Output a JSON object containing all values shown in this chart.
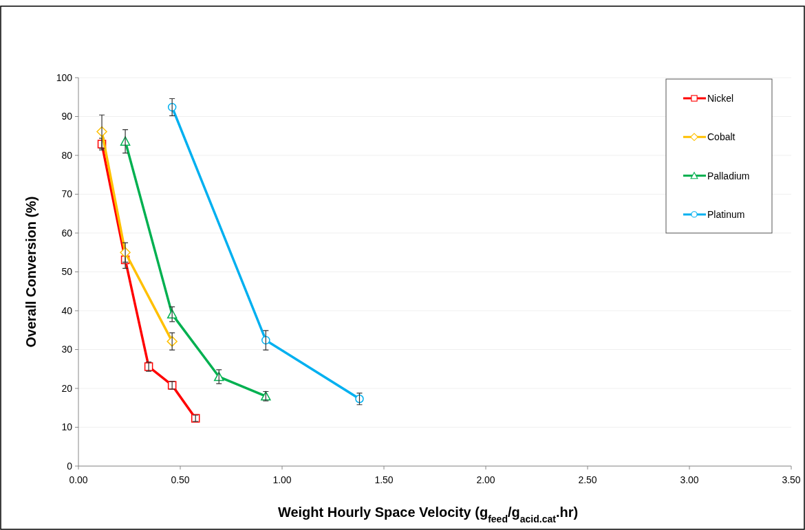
{
  "chart_data": {
    "type": "line",
    "xlabel": "Weight Hourly Space Velocity (g$_{feed}$/g$_{acid.cat}$.hr)",
    "ylabel": "Overall Conversion (%)",
    "xlim": [
      0,
      3.5
    ],
    "xticks": [
      {
        "value": 0,
        "label": "0.00"
      },
      {
        "value": 0.5,
        "label": "0.50"
      },
      {
        "value": 1,
        "label": "1.00"
      },
      {
        "value": 1.5,
        "label": "1.50"
      },
      {
        "value": 2,
        "label": "2.00"
      },
      {
        "value": 2.5,
        "label": "2.50"
      },
      {
        "value": 3,
        "label": "3.00"
      },
      {
        "value": 3.5,
        "label": "3.50"
      }
    ],
    "ylim": [
      0,
      100
    ],
    "yticks": [
      0,
      10,
      20,
      30,
      40,
      50,
      60,
      70,
      80,
      90,
      100
    ],
    "grid": "y",
    "legend": "top right",
    "series": [
      {
        "name": "Nickel",
        "color": "#ff0000",
        "marker": "square",
        "x": [
          0.115,
          0.23,
          0.345,
          0.46,
          0.575
        ],
        "values": [
          82.9,
          53.1,
          25.6,
          20.8,
          12.3
        ],
        "errors": [
          1.5,
          2.2,
          1.2,
          1.0,
          0.8
        ]
      },
      {
        "name": "Cobalt",
        "color": "#ffc000",
        "marker": "diamond",
        "x": [
          0.115,
          0.23,
          0.46
        ],
        "values": [
          86.1,
          55.0,
          32.1
        ],
        "errors": [
          4.3,
          2.5,
          2.2
        ]
      },
      {
        "name": "Palladium",
        "color": "#00b050",
        "marker": "triangle",
        "x": [
          0.23,
          0.46,
          0.69,
          0.92
        ],
        "values": [
          83.6,
          39.1,
          23.0,
          18.0
        ],
        "errors": [
          3.0,
          1.9,
          1.8,
          1.2
        ]
      },
      {
        "name": "Platinum",
        "color": "#00b0f0",
        "marker": "circle",
        "x": [
          0.46,
          0.92,
          1.38
        ],
        "values": [
          92.4,
          32.4,
          17.3
        ],
        "errors": [
          2.2,
          2.5,
          1.5
        ]
      }
    ]
  }
}
